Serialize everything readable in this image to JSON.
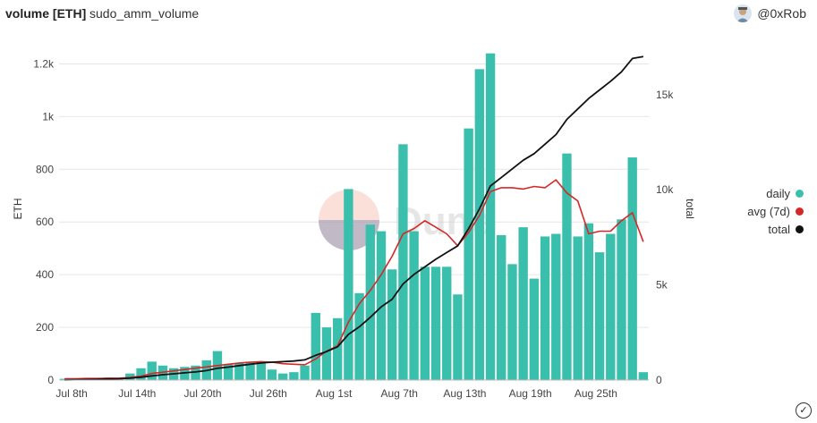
{
  "header": {
    "title": "volume [ETH]",
    "subtitle": "sudo_amm_volume",
    "user": "@0xRob"
  },
  "watermark": "Dune",
  "chart_data": {
    "type": "bar",
    "ylabel": "ETH",
    "y2label": "total",
    "ylim": [
      0,
      1300
    ],
    "y2lim": [
      0,
      18000
    ],
    "yticks": [
      "0",
      "200",
      "400",
      "600",
      "800",
      "1k",
      "1.2k"
    ],
    "ytick_values": [
      0,
      200,
      400,
      600,
      800,
      1000,
      1200
    ],
    "y2ticks": [
      "0",
      "5k",
      "10k",
      "15k"
    ],
    "y2tick_values": [
      0,
      5000,
      10000,
      15000
    ],
    "xticks": [
      "Jul 8th",
      "Jul 14th",
      "Jul 20th",
      "Jul 26th",
      "Aug 1st",
      "Aug 7th",
      "Aug 13th",
      "Aug 19th",
      "Aug 25th"
    ],
    "xtick_indices": [
      0,
      6,
      12,
      18,
      24,
      30,
      36,
      42,
      48
    ],
    "legend": [
      {
        "name": "daily",
        "color": "#3bbfad"
      },
      {
        "name": "avg (7d)",
        "color": "#d62728"
      },
      {
        "name": "total",
        "color": "#111111"
      }
    ],
    "series": [
      {
        "name": "daily",
        "type": "bar",
        "color": "#3bbfad",
        "values": [
          5,
          5,
          8,
          5,
          10,
          8,
          25,
          45,
          70,
          55,
          45,
          50,
          55,
          75,
          110,
          60,
          65,
          70,
          70,
          40,
          25,
          30,
          55,
          255,
          200,
          235,
          725,
          330,
          590,
          565,
          420,
          895,
          565,
          430,
          430,
          430,
          325,
          955,
          1180,
          1240,
          550,
          440,
          580,
          385,
          545,
          555,
          860,
          545,
          595,
          485,
          555,
          610,
          845,
          30
        ]
      },
      {
        "name": "avg (7d)",
        "type": "line",
        "axis": "left",
        "color": "#d62728",
        "values": [
          5,
          5,
          6,
          6,
          7,
          7,
          10,
          15,
          25,
          30,
          35,
          40,
          45,
          50,
          55,
          60,
          65,
          68,
          70,
          68,
          62,
          60,
          58,
          80,
          110,
          130,
          220,
          290,
          340,
          400,
          470,
          555,
          575,
          605,
          580,
          555,
          510,
          560,
          625,
          715,
          730,
          730,
          725,
          735,
          730,
          760,
          710,
          680,
          555,
          565,
          565,
          605,
          635,
          525
        ]
      },
      {
        "name": "total",
        "type": "line",
        "axis": "right",
        "color": "#111111",
        "values": [
          10,
          20,
          30,
          40,
          55,
          70,
          100,
          150,
          220,
          280,
          330,
          380,
          430,
          500,
          620,
          680,
          760,
          830,
          900,
          940,
          970,
          1000,
          1060,
          1300,
          1500,
          1750,
          2400,
          2800,
          3300,
          3850,
          4250,
          5050,
          5550,
          5950,
          6350,
          6700,
          7050,
          7950,
          9000,
          10200,
          10650,
          11100,
          11550,
          11900,
          12400,
          12900,
          13700,
          14250,
          14800,
          15250,
          15700,
          16200,
          16900,
          17000
        ]
      }
    ]
  }
}
